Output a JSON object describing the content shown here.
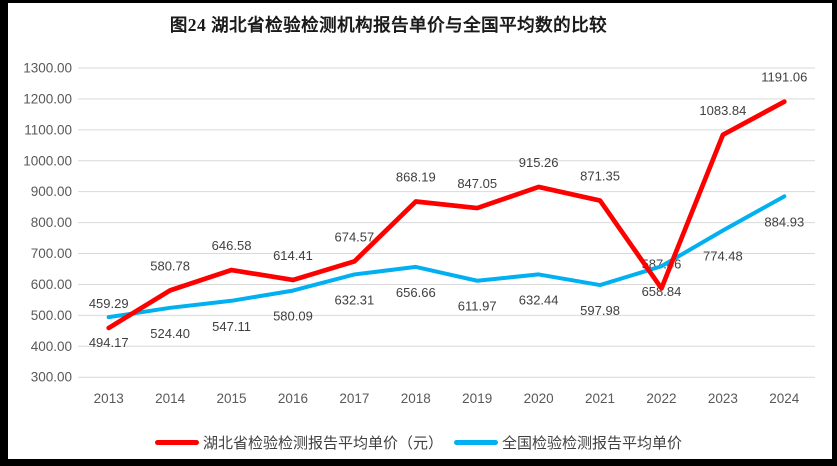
{
  "title": "图24 湖北省检验检测机构报告单价与全国平均数的比较",
  "chart_data": {
    "type": "line",
    "title": "图24 湖北省检验检测机构报告单价与全国平均数的比较",
    "categories": [
      "2013",
      "2014",
      "2015",
      "2016",
      "2017",
      "2018",
      "2019",
      "2020",
      "2021",
      "2022",
      "2023",
      "2024"
    ],
    "series": [
      {
        "id": "hubei",
        "name": "湖北省检验检测报告平均单价（元）",
        "color": "#FF0000",
        "label_position": "above",
        "values": [
          459.29,
          580.78,
          646.58,
          614.41,
          674.57,
          868.19,
          847.05,
          915.26,
          871.35,
          587.46,
          1083.84,
          1191.06
        ]
      },
      {
        "id": "national",
        "name": "全国检验检测报告平均单价",
        "color": "#00B0F0",
        "label_position": "below",
        "values": [
          494.17,
          524.4,
          547.11,
          580.09,
          632.31,
          656.66,
          611.97,
          632.44,
          597.98,
          658.84,
          774.48,
          884.93
        ]
      }
    ],
    "xlabel": "",
    "ylabel": "",
    "ylim": [
      300,
      1300
    ],
    "ytick_step": 100,
    "ytick_labels": [
      "300.00",
      "400.00",
      "500.00",
      "600.00",
      "700.00",
      "800.00",
      "900.00",
      "1000.00",
      "1100.00",
      "1200.00",
      "1300.00"
    ],
    "grid": true,
    "gridline_color": "#D9D9D9",
    "legend_position": "bottom"
  }
}
